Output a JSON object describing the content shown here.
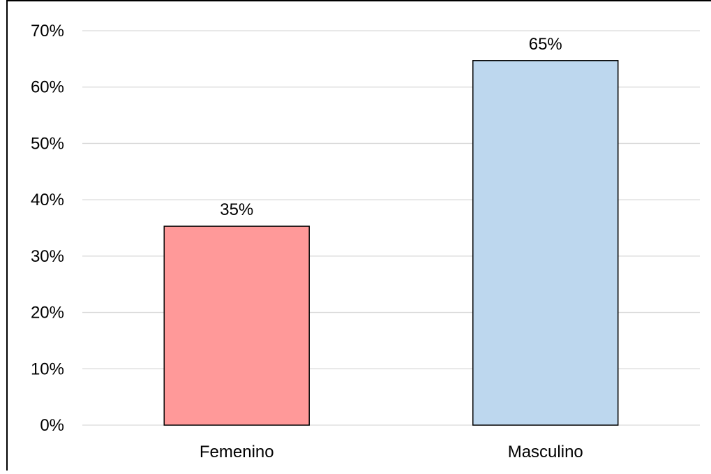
{
  "chart_data": {
    "type": "bar",
    "title": "",
    "xlabel": "",
    "ylabel": "",
    "categories": [
      "Femenino",
      "Masculino"
    ],
    "values": [
      35.3,
      64.7
    ],
    "data_labels": [
      "35%",
      "65%"
    ],
    "bar_colors": [
      "#ff9999",
      "#bdd7ee"
    ],
    "ylim": [
      0,
      70
    ],
    "yticks": [
      0,
      10,
      20,
      30,
      40,
      50,
      60,
      70
    ],
    "ytick_labels": [
      "0%",
      "10%",
      "20%",
      "30%",
      "40%",
      "50%",
      "60%",
      "70%"
    ],
    "grid": true,
    "legend": false
  }
}
